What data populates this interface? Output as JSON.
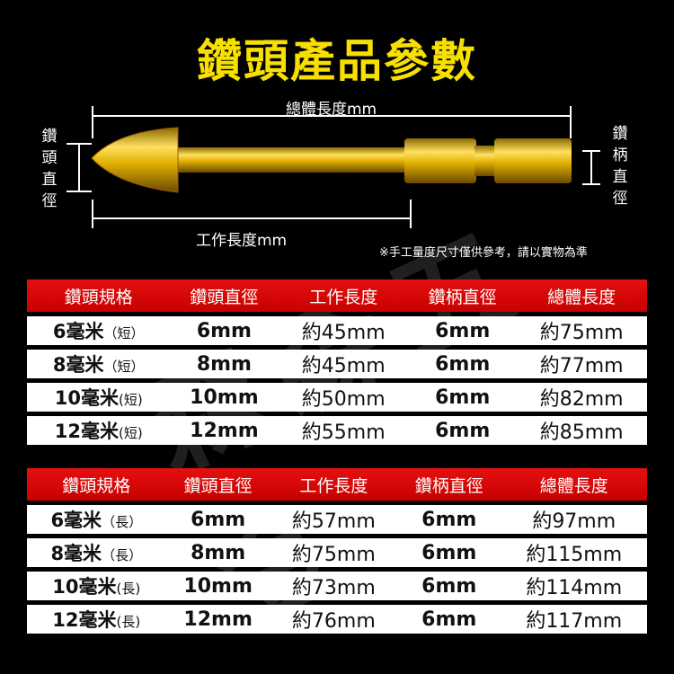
{
  "title": "鑽頭產品參數",
  "diagram": {
    "total_length": "總體長度mm",
    "working_length": "工作長度mm",
    "head_diameter": "鑽頭直徑",
    "shank_diameter": "鑽柄直徑",
    "note": "※手工量度尺寸僅供參考，請以實物為準"
  },
  "colors": {
    "title": "#f7e000",
    "header": "#d80000"
  },
  "columns": [
    "鑽頭規格",
    "鑽頭直徑",
    "工作長度",
    "鑽柄直徑",
    "總體長度"
  ],
  "tables": [
    {
      "rows": [
        {
          "spec": "6毫米",
          "type": "（短）",
          "head": "6mm",
          "work": "約45mm",
          "shank": "6mm",
          "total": "約75mm"
        },
        {
          "spec": "8毫米",
          "type": "（短）",
          "head": "8mm",
          "work": "約45mm",
          "shank": "6mm",
          "total": "約77mm"
        },
        {
          "spec": "10毫米",
          "type": "(短)",
          "head": "10mm",
          "work": "約50mm",
          "shank": "6mm",
          "total": "約82mm"
        },
        {
          "spec": "12毫米",
          "type": "(短)",
          "head": "12mm",
          "work": "約55mm",
          "shank": "6mm",
          "total": "約85mm"
        }
      ]
    },
    {
      "rows": [
        {
          "spec": "6毫米",
          "type": "（長）",
          "head": "6mm",
          "work": "約57mm",
          "shank": "6mm",
          "total": "約97mm"
        },
        {
          "spec": "8毫米",
          "type": "（長）",
          "head": "8mm",
          "work": "約75mm",
          "shank": "6mm",
          "total": "約115mm"
        },
        {
          "spec": "10毫米",
          "type": "(長)",
          "head": "10mm",
          "work": "約73mm",
          "shank": "6mm",
          "total": "約114mm"
        },
        {
          "spec": "12毫米",
          "type": "(長)",
          "head": "12mm",
          "work": "約76mm",
          "shank": "6mm",
          "total": "約117mm"
        }
      ]
    }
  ]
}
